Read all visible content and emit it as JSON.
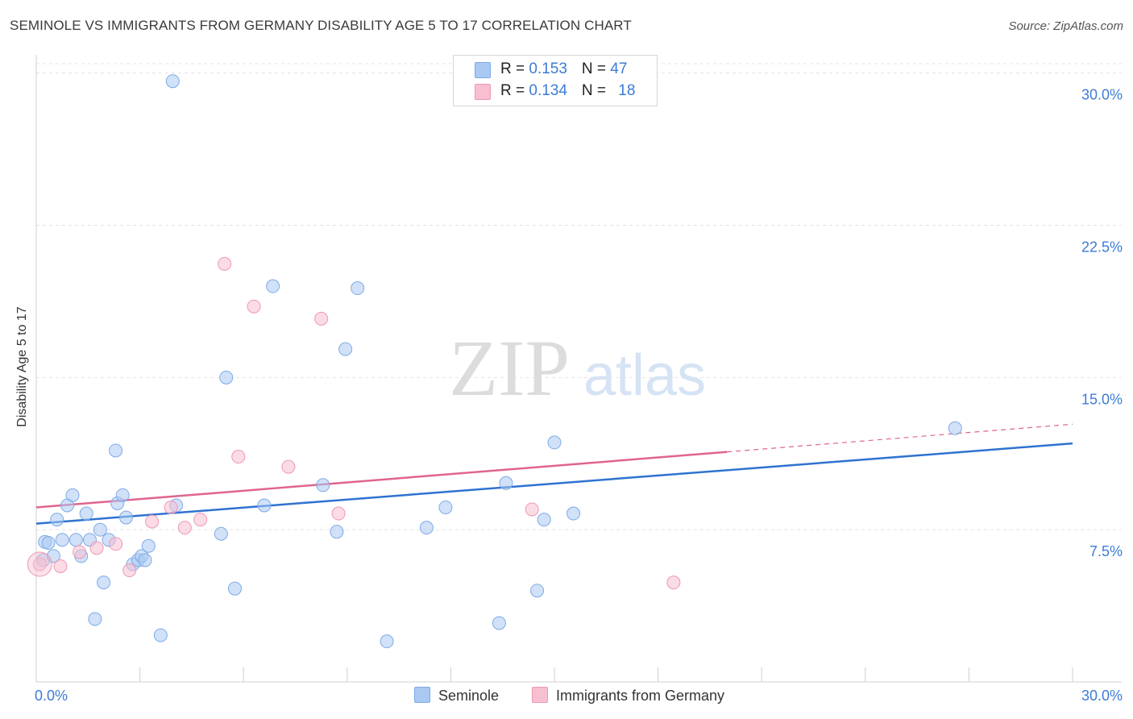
{
  "header": {
    "title": "SEMINOLE VS IMMIGRANTS FROM GERMANY DISABILITY AGE 5 TO 17 CORRELATION CHART",
    "source": "Source: ZipAtlas.com"
  },
  "watermark": {
    "zip": "ZIP",
    "atlas": "atlas"
  },
  "legend": {
    "rows": [
      {
        "r_label": "R = ",
        "r_value": "0.153",
        "n_label": "N = ",
        "n_value": "47",
        "color": "#a9c8f2"
      },
      {
        "r_label": "R = ",
        "r_value": "0.134",
        "n_label": "N = ",
        "n_value": "18",
        "color": "#f7bfd0"
      }
    ]
  },
  "chart_data": {
    "type": "scatter",
    "title": "SEMINOLE VS IMMIGRANTS FROM GERMANY DISABILITY AGE 5 TO 17 CORRELATION CHART",
    "xlabel": "",
    "ylabel": "Disability Age 5 to 17",
    "xlim": [
      0,
      30
    ],
    "ylim": [
      0,
      30.9
    ],
    "x_tick_labels": [
      "0.0%",
      "30.0%"
    ],
    "y_ticks": [
      {
        "value": 7.5,
        "label": "7.5%"
      },
      {
        "value": 15.0,
        "label": "15.0%"
      },
      {
        "value": 22.5,
        "label": "22.5%"
      },
      {
        "value": 30.0,
        "label": "30.0%"
      }
    ],
    "grid": true,
    "legend_position": "bottom-center",
    "series": [
      {
        "name": "Seminole",
        "color": "#a9c8f2",
        "stroke": "#7eaae6",
        "line_color": "#2f72d0",
        "trend": {
          "x": [
            0,
            30
          ],
          "y": [
            7.8,
            11.75
          ],
          "dashed_from": null
        },
        "points": [
          [
            0.2,
            6.0
          ],
          [
            0.25,
            6.9
          ],
          [
            0.35,
            6.85
          ],
          [
            0.5,
            6.2
          ],
          [
            0.6,
            8.0
          ],
          [
            0.75,
            7.0
          ],
          [
            0.9,
            8.7
          ],
          [
            1.05,
            9.2
          ],
          [
            1.15,
            7.0
          ],
          [
            1.3,
            6.2
          ],
          [
            1.45,
            8.3
          ],
          [
            1.55,
            7.0
          ],
          [
            1.7,
            3.1
          ],
          [
            1.85,
            7.5
          ],
          [
            1.95,
            4.9
          ],
          [
            2.1,
            7.0
          ],
          [
            2.3,
            11.4
          ],
          [
            2.35,
            8.8
          ],
          [
            2.5,
            9.2
          ],
          [
            2.6,
            8.1
          ],
          [
            2.8,
            5.8
          ],
          [
            2.95,
            6.0
          ],
          [
            3.05,
            6.2
          ],
          [
            3.15,
            6.0
          ],
          [
            3.25,
            6.7
          ],
          [
            3.6,
            2.3
          ],
          [
            3.95,
            29.6
          ],
          [
            4.05,
            8.7
          ],
          [
            5.35,
            7.3
          ],
          [
            5.5,
            15.0
          ],
          [
            5.75,
            4.6
          ],
          [
            6.6,
            8.7
          ],
          [
            6.85,
            19.5
          ],
          [
            8.3,
            9.7
          ],
          [
            8.7,
            7.4
          ],
          [
            8.95,
            16.4
          ],
          [
            9.3,
            19.4
          ],
          [
            10.15,
            2.0
          ],
          [
            11.3,
            7.6
          ],
          [
            11.85,
            8.6
          ],
          [
            13.4,
            2.9
          ],
          [
            13.6,
            9.8
          ],
          [
            14.5,
            4.5
          ],
          [
            14.7,
            8.0
          ],
          [
            15.0,
            11.8
          ],
          [
            15.55,
            8.3
          ],
          [
            26.6,
            12.5
          ]
        ]
      },
      {
        "name": "Immigrants from Germany",
        "color": "#f7bfd0",
        "stroke": "#ee97b4",
        "line_color": "#e0648f",
        "trend": {
          "x": [
            0,
            30
          ],
          "y": [
            8.6,
            12.7
          ],
          "dashed_from": 20.0
        },
        "points": [
          [
            0.1,
            5.8
          ],
          [
            0.7,
            5.7
          ],
          [
            1.25,
            6.4
          ],
          [
            1.75,
            6.6
          ],
          [
            2.3,
            6.8
          ],
          [
            2.7,
            5.5
          ],
          [
            3.35,
            7.9
          ],
          [
            3.9,
            8.6
          ],
          [
            4.3,
            7.6
          ],
          [
            4.75,
            8.0
          ],
          [
            5.45,
            20.6
          ],
          [
            5.85,
            11.1
          ],
          [
            6.3,
            18.5
          ],
          [
            7.3,
            10.6
          ],
          [
            8.25,
            17.9
          ],
          [
            8.75,
            8.3
          ],
          [
            14.35,
            8.5
          ],
          [
            18.45,
            4.9
          ]
        ]
      }
    ]
  }
}
